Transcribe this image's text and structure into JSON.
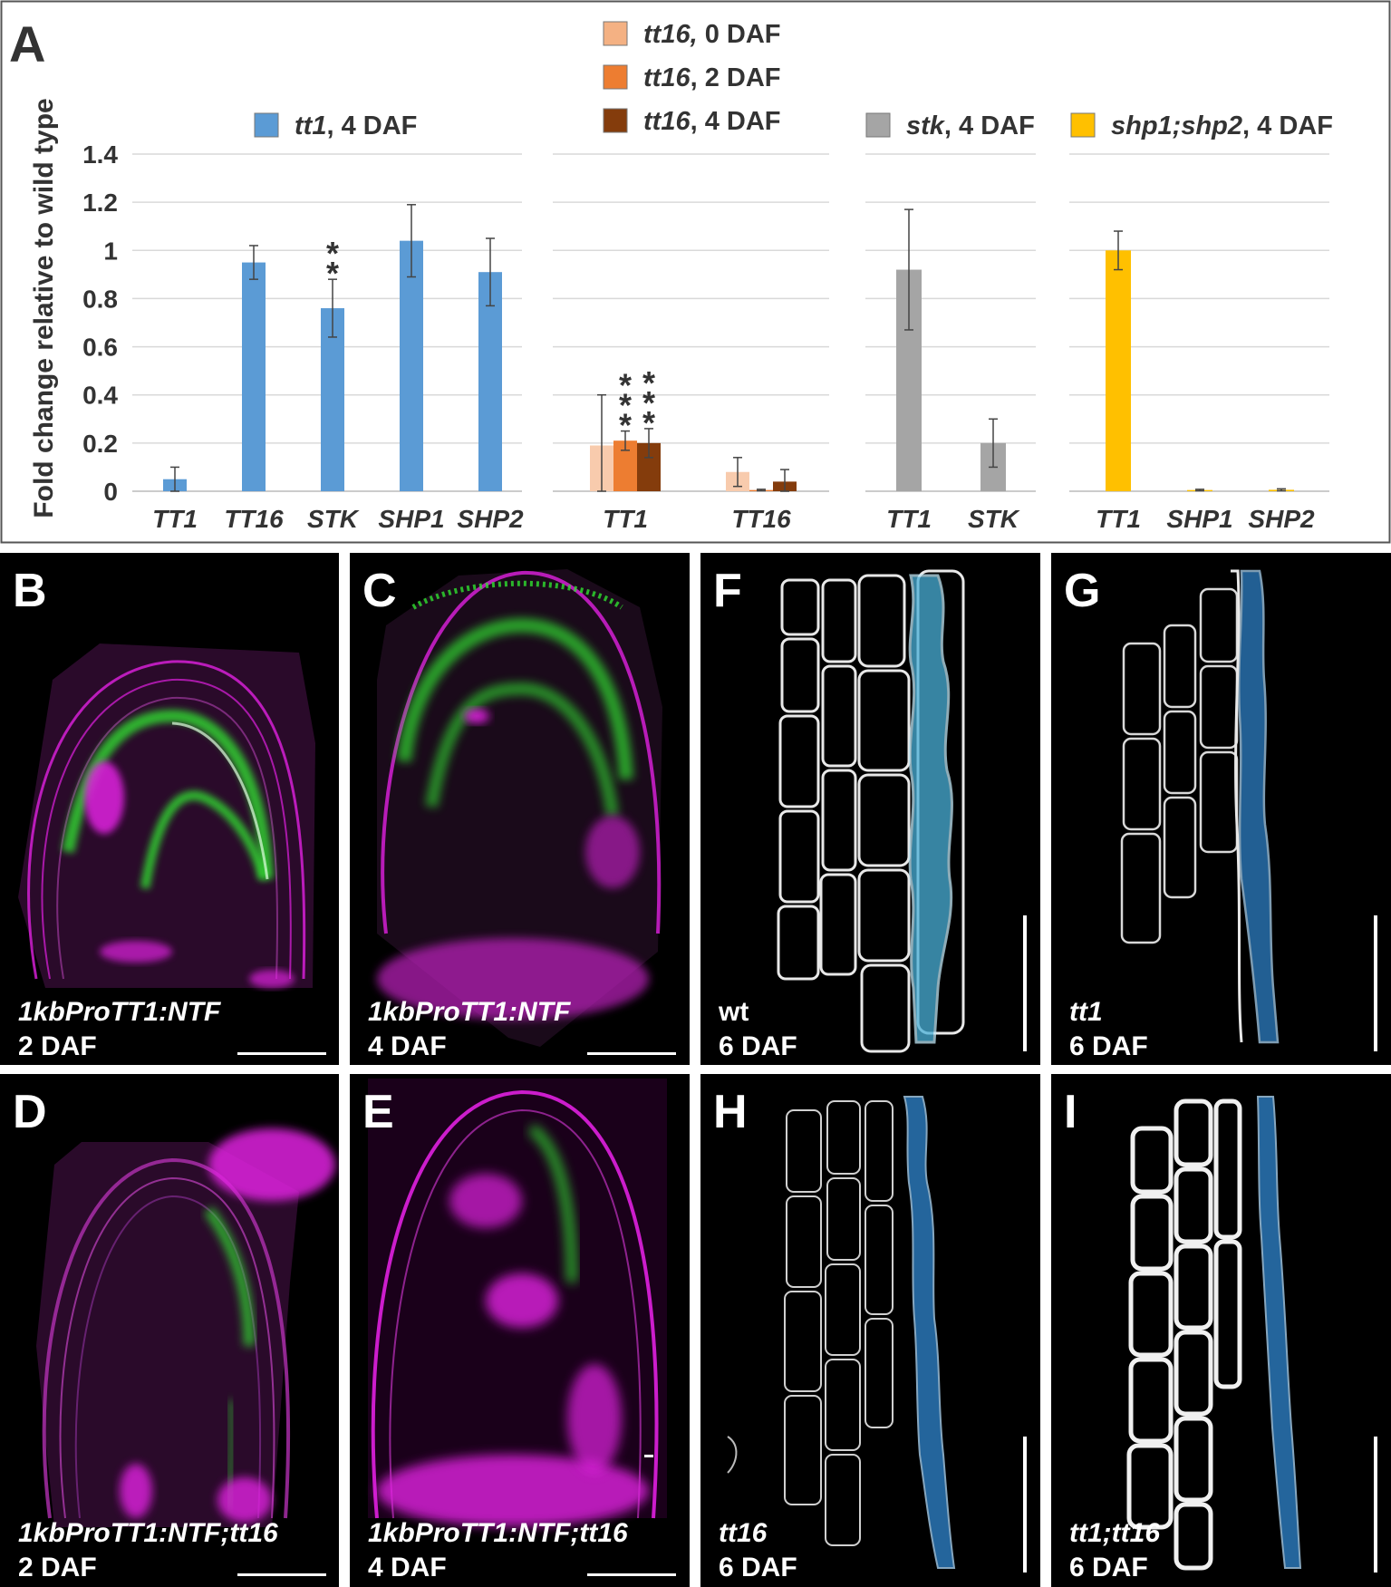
{
  "panel_labels": [
    "A",
    "B",
    "C",
    "D",
    "E",
    "F",
    "G",
    "H",
    "I"
  ],
  "chart_data": {
    "type": "bar",
    "ylabel": "Fold change relative to wild type",
    "ylim": [
      0,
      1.4
    ],
    "yticks": [
      "0",
      "0.2",
      "0.4",
      "0.6",
      "0.8",
      "1",
      "1.2",
      "1.4"
    ],
    "grid": true,
    "groups": [
      {
        "categories": [
          "TT1",
          "TT16",
          "STK",
          "SHP1",
          "SHP2"
        ],
        "legend": [
          {
            "name_italic": "tt1",
            "name_rest": ", 4 DAF",
            "color": "#5b9bd5"
          }
        ],
        "series": [
          {
            "name": "tt1, 4 DAF",
            "color": "#5b9bd5",
            "values": [
              0.05,
              0.95,
              0.76,
              1.04,
              0.91
            ],
            "errors": [
              0.05,
              0.07,
              0.12,
              0.15,
              0.14
            ],
            "stars": [
              "",
              "",
              "**",
              "",
              ""
            ]
          }
        ]
      },
      {
        "categories": [
          "TT1",
          "TT16"
        ],
        "legend": [
          {
            "name_italic": "tt16,",
            "name_rest": " 0 DAF",
            "color": "#f4b183"
          },
          {
            "name_italic": "tt16",
            "name_rest": ", 2 DAF",
            "color": "#ed7d31"
          },
          {
            "name_italic": "tt16",
            "name_rest": ", 4 DAF",
            "color": "#843c0c"
          }
        ],
        "series": [
          {
            "name": "tt16, 0 DAF",
            "color": "#f8cbad",
            "values": [
              0.19,
              0.08
            ],
            "errors": [
              0.21,
              0.06
            ],
            "stars": [
              "",
              ""
            ]
          },
          {
            "name": "tt16, 2 DAF",
            "color": "#ed7d31",
            "values": [
              0.21,
              0.005
            ],
            "errors": [
              0.04,
              0.003
            ],
            "stars": [
              "***",
              ""
            ]
          },
          {
            "name": "tt16, 4 DAF",
            "color": "#843c0c",
            "values": [
              0.2,
              0.04
            ],
            "errors": [
              0.06,
              0.05
            ],
            "stars": [
              "***",
              ""
            ]
          }
        ]
      },
      {
        "categories": [
          "TT1",
          "STK"
        ],
        "legend": [
          {
            "name_italic": "stk",
            "name_rest": ", 4 DAF",
            "color": "#a5a5a5"
          }
        ],
        "series": [
          {
            "name": "stk, 4 DAF",
            "color": "#a5a5a5",
            "values": [
              0.92,
              0.2
            ],
            "errors": [
              0.25,
              0.1
            ],
            "stars": [
              "",
              ""
            ]
          }
        ]
      },
      {
        "categories": [
          "TT1",
          "SHP1",
          "SHP2"
        ],
        "legend": [
          {
            "name_italic": "shp1;shp2",
            "name_rest": ", 4 DAF",
            "color": "#ffc000"
          }
        ],
        "series": [
          {
            "name": "shp1;shp2, 4 DAF",
            "color": "#ffc000",
            "values": [
              1.0,
              0.005,
              0.006
            ],
            "errors": [
              0.08,
              0.003,
              0.004
            ],
            "stars": [
              "",
              "",
              ""
            ]
          }
        ]
      }
    ]
  },
  "micrographs": [
    {
      "label": "B",
      "caption_italic": "1kbProTT1:NTF",
      "caption_plain": "2 DAF"
    },
    {
      "label": "C",
      "caption_italic": "1kbProTT1:NTF",
      "caption_plain": "4 DAF"
    },
    {
      "label": "D",
      "caption_italic": "1kbProTT1:NTF;tt16",
      "caption_plain": "2 DAF"
    },
    {
      "label": "E",
      "caption_italic": "1kbProTT1:NTF;tt16",
      "caption_plain": "4 DAF"
    },
    {
      "label": "F",
      "caption_italic": "wt",
      "caption_plain": "6 DAF"
    },
    {
      "label": "G",
      "caption_italic": "tt1",
      "caption_plain": "6 DAF"
    },
    {
      "label": "H",
      "caption_italic": "tt16",
      "caption_plain": "6 DAF"
    },
    {
      "label": "I",
      "caption_italic": "tt1;tt16",
      "caption_plain": "6 DAF"
    }
  ],
  "colors": {
    "magenta": "#e020e0",
    "green": "#30e030",
    "cyan_overlay": "#4ab0d8",
    "blue_overlay": "#2e7fc4"
  }
}
